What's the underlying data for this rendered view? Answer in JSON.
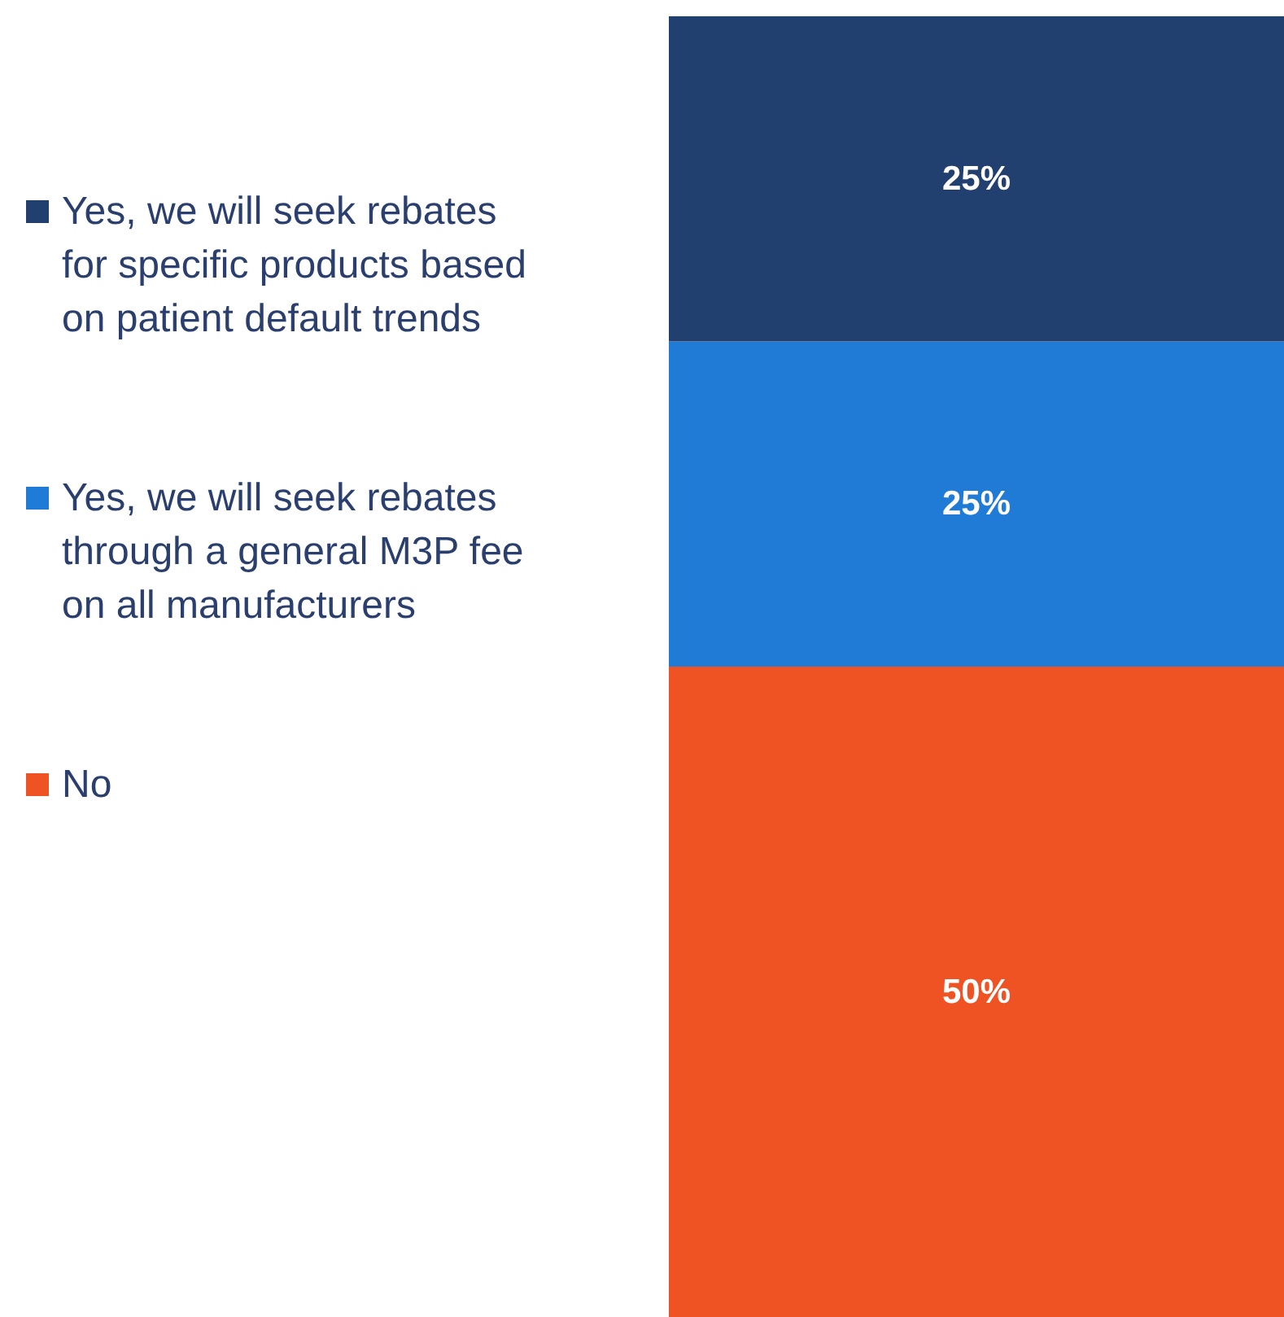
{
  "chart_data": {
    "type": "bar",
    "stacked": true,
    "categories": [
      null
    ],
    "legend": "left",
    "ylim": [
      0,
      100
    ],
    "series": [
      {
        "name": "No",
        "color": "#ef5323",
        "values": [
          50
        ],
        "value_labels": [
          "50%"
        ]
      },
      {
        "name": "Yes, we will seek rebates through a general M3P fee on all manufacturers",
        "color": "#1f7bd6",
        "values": [
          25
        ],
        "value_labels": [
          "25%"
        ]
      },
      {
        "name": "Yes, we will seek rebates for specific products based on patient default trends",
        "color": "#22406f",
        "values": [
          25
        ],
        "value_labels": [
          "25%"
        ]
      }
    ]
  }
}
